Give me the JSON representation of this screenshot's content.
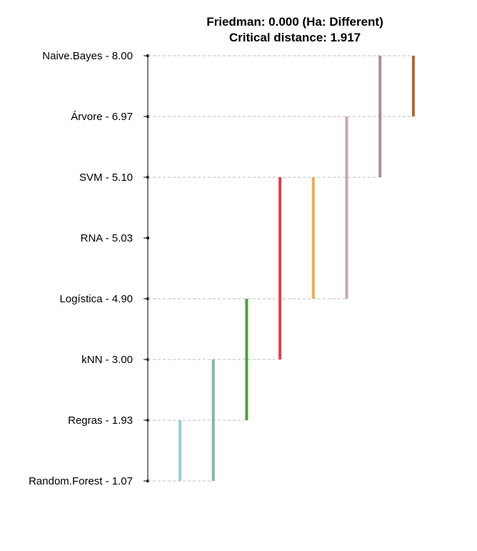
{
  "chart_data": {
    "type": "critical-difference",
    "title": "Friedman: 0.000 (Ha: Different)",
    "subtitle": "Critical distance: 1.917",
    "friedman_p": 0.0,
    "critical_distance": 1.917,
    "items": [
      {
        "name": "Naive.Bayes",
        "rank": "8.00",
        "label": "Naive.Bayes - 8.00",
        "has_line": true
      },
      {
        "name": "Árvore",
        "rank": "6.97",
        "label": "Árvore - 6.97",
        "has_line": true
      },
      {
        "name": "SVM",
        "rank": "5.10",
        "label": "SVM - 5.10",
        "has_line": true
      },
      {
        "name": "RNA",
        "rank": "5.03",
        "label": "RNA - 5.03",
        "has_line": false
      },
      {
        "name": "Logística",
        "rank": "4.90",
        "label": "Logística - 4.90",
        "has_line": true
      },
      {
        "name": "kNN",
        "rank": "3.00",
        "label": "kNN - 3.00",
        "has_line": true
      },
      {
        "name": "Regras",
        "rank": "1.93",
        "label": "Regras - 1.93",
        "has_line": true
      },
      {
        "name": "Random.Forest",
        "rank": "1.07",
        "label": "Random.Forest - 1.07",
        "has_line": true
      }
    ],
    "groups": [
      {
        "from": "Regras",
        "to": "Random.Forest",
        "color": "#9ecae1"
      },
      {
        "from": "kNN",
        "to": "Random.Forest",
        "color": "#7fb8a4"
      },
      {
        "from": "Logística",
        "to": "Regras",
        "color": "#4ea03b"
      },
      {
        "from": "SVM",
        "to": "kNN",
        "color": "#e0404a"
      },
      {
        "from": "SVM",
        "to": "Logística",
        "color": "#f5a94e"
      },
      {
        "from": "Árvore",
        "to": "Logística",
        "color": "#c9a6ad"
      },
      {
        "from": "Naive.Bayes",
        "to": "SVM",
        "color": "#a78f98"
      },
      {
        "from": "Naive.Bayes",
        "to": "Árvore",
        "color": "#b5662f"
      }
    ]
  }
}
